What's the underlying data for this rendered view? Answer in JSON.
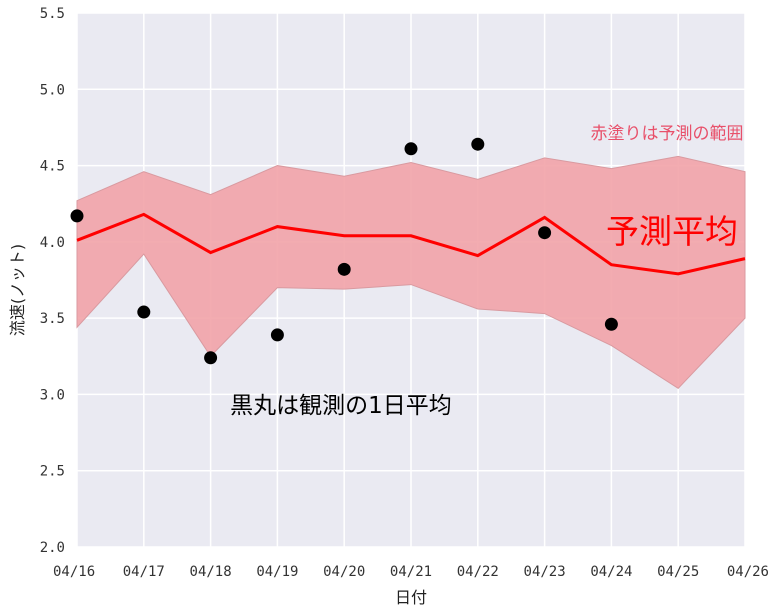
{
  "chart_data": {
    "type": "line",
    "xlabel": "日付",
    "ylabel": "流速(ノット)",
    "ylim": [
      2.0,
      5.5
    ],
    "yticks": [
      "2.0",
      "2.5",
      "3.0",
      "3.5",
      "4.0",
      "4.5",
      "5.0",
      "5.5"
    ],
    "categories": [
      "04/16",
      "04/17",
      "04/18",
      "04/19",
      "04/20",
      "04/21",
      "04/22",
      "04/23",
      "04/24",
      "04/25",
      "04/26"
    ],
    "grid": true,
    "series": [
      {
        "kind": "band",
        "upper": [
          4.27,
          4.46,
          4.31,
          4.5,
          4.43,
          4.52,
          4.41,
          4.55,
          4.48,
          4.56,
          4.46
        ],
        "lower": [
          3.44,
          3.92,
          3.25,
          3.7,
          3.69,
          3.72,
          3.56,
          3.53,
          3.32,
          3.04,
          3.5
        ],
        "color": "#f2a3a8"
      },
      {
        "kind": "line",
        "values": [
          4.01,
          4.18,
          3.93,
          4.1,
          4.04,
          4.04,
          3.91,
          4.16,
          3.85,
          3.79,
          3.89
        ],
        "color": "#ff0000"
      },
      {
        "kind": "points",
        "values": [
          4.17,
          3.54,
          3.24,
          3.39,
          3.82,
          4.61,
          4.64,
          4.06,
          3.46,
          null,
          null
        ],
        "color": "#000000"
      }
    ],
    "annotations": {
      "band": "赤塗りは予測の範囲",
      "mean": "予測平均",
      "observed": "黒丸は観測の1日平均"
    },
    "colors": {
      "background": "#eaeaf2",
      "grid": "#ffffff",
      "band_text": "#e8506a",
      "mean_text": "#ff0000"
    }
  }
}
